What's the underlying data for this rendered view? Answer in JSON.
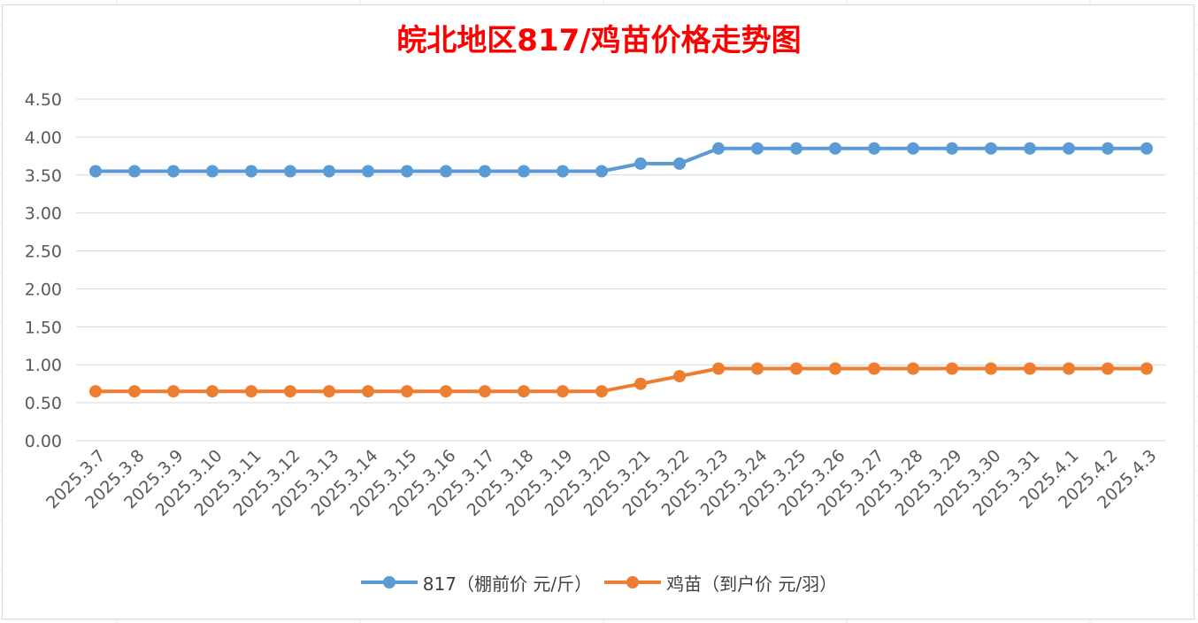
{
  "colors": {
    "series_817": "#5b9bd5",
    "series_chick": "#ed7d31",
    "title": "#ff0000",
    "grid": "#d9d9d9",
    "axis_text": "#595959"
  },
  "chart_data": {
    "type": "line",
    "title": "皖北地区817/鸡苗价格走势图",
    "xlabel": "",
    "ylabel": "",
    "ylim": [
      0,
      4.5
    ],
    "yticks": [
      "0.00",
      "0.50",
      "1.00",
      "1.50",
      "2.00",
      "2.50",
      "3.00",
      "3.50",
      "4.00",
      "4.50"
    ],
    "ytick_values": [
      0,
      0.5,
      1,
      1.5,
      2,
      2.5,
      3,
      3.5,
      4,
      4.5
    ],
    "grid": true,
    "legend_position": "bottom",
    "categories": [
      "2025.3.7",
      "2025.3.8",
      "2025.3.9",
      "2025.3.10",
      "2025.3.11",
      "2025.3.12",
      "2025.3.13",
      "2025.3.14",
      "2025.3.15",
      "2025.3.16",
      "2025.3.17",
      "2025.3.18",
      "2025.3.19",
      "2025.3.20",
      "2025.3.21",
      "2025.3.22",
      "2025.3.23",
      "2025.3.24",
      "2025.3.25",
      "2025.3.26",
      "2025.3.27",
      "2025.3.28",
      "2025.3.29",
      "2025.3.30",
      "2025.3.31",
      "2025.4.1",
      "2025.4.2",
      "2025.4.3"
    ],
    "series": [
      {
        "name": "817（棚前价 元/斤）",
        "color": "#5b9bd5",
        "values": [
          3.55,
          3.55,
          3.55,
          3.55,
          3.55,
          3.55,
          3.55,
          3.55,
          3.55,
          3.55,
          3.55,
          3.55,
          3.55,
          3.55,
          3.65,
          3.65,
          3.85,
          3.85,
          3.85,
          3.85,
          3.85,
          3.85,
          3.85,
          3.85,
          3.85,
          3.85,
          3.85,
          3.85
        ]
      },
      {
        "name": "鸡苗（到户价 元/羽）",
        "color": "#ed7d31",
        "values": [
          0.65,
          0.65,
          0.65,
          0.65,
          0.65,
          0.65,
          0.65,
          0.65,
          0.65,
          0.65,
          0.65,
          0.65,
          0.65,
          0.65,
          0.75,
          0.85,
          0.95,
          0.95,
          0.95,
          0.95,
          0.95,
          0.95,
          0.95,
          0.95,
          0.95,
          0.95,
          0.95,
          0.95
        ]
      }
    ]
  }
}
